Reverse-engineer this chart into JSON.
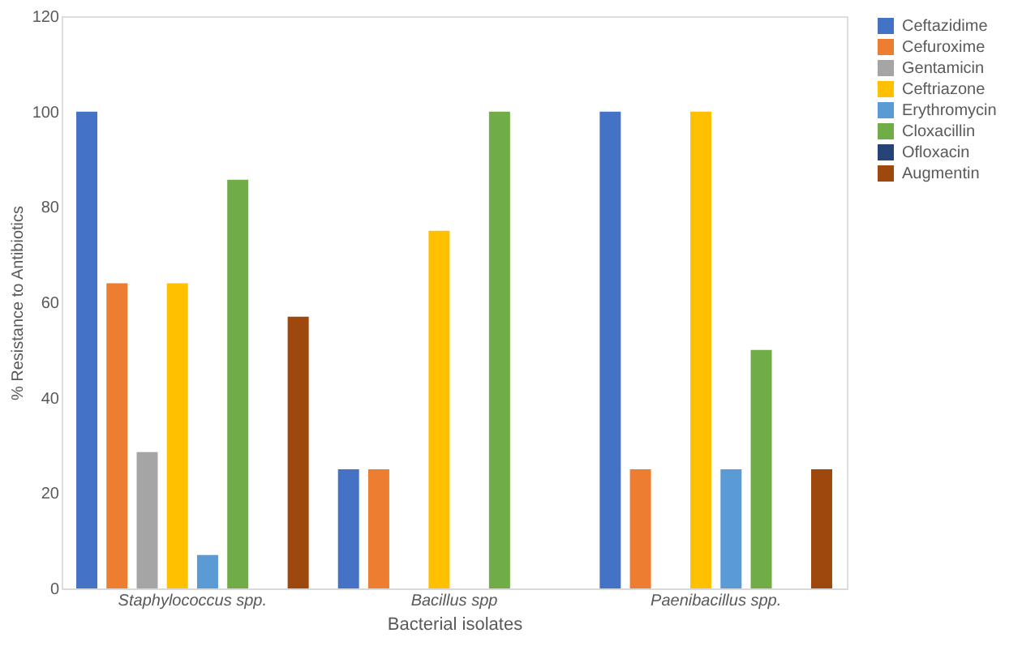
{
  "chart_data": {
    "type": "bar",
    "xlabel": "Bacterial isolates",
    "ylabel": "% Resistance to Antibiotics",
    "categories": [
      "Staphylococcus spp.",
      "Bacillus spp",
      "Paenibacillus spp."
    ],
    "series": [
      {
        "name": "Ceftazidime",
        "color": "#4472c4",
        "values": [
          100,
          25,
          100
        ]
      },
      {
        "name": "Cefuroxime",
        "color": "#ed7d31",
        "values": [
          64,
          25,
          25
        ]
      },
      {
        "name": "Gentamicin",
        "color": "#a5a5a5",
        "values": [
          28.6,
          0,
          0
        ]
      },
      {
        "name": "Ceftriazone",
        "color": "#ffc000",
        "values": [
          64,
          75,
          100
        ]
      },
      {
        "name": "Erythromycin",
        "color": "#5b9bd5",
        "values": [
          7,
          0,
          25
        ]
      },
      {
        "name": "Cloxacillin",
        "color": "#70ad47",
        "values": [
          85.7,
          100,
          50
        ]
      },
      {
        "name": "Ofloxacin",
        "color": "#264478",
        "values": [
          0,
          0,
          0
        ]
      },
      {
        "name": "Augmentin",
        "color": "#9e480e",
        "values": [
          57,
          0,
          25
        ]
      }
    ],
    "ylim": [
      0,
      120
    ],
    "yticks": [
      0,
      20,
      40,
      60,
      80,
      100,
      120
    ],
    "grid": false,
    "legend": "right"
  }
}
